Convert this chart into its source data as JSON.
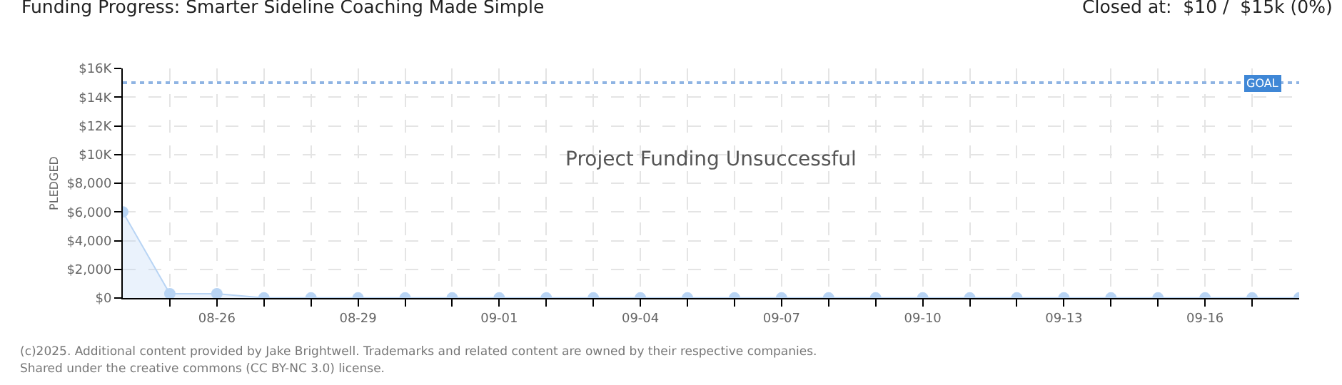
{
  "chart_data": {
    "type": "area",
    "title": "Funding Progress: Smarter Sideline Coaching Made Simple",
    "subtitle": "Closed at:  $10 /  $15k (0%)",
    "ylabel": "PLEDGED",
    "x": [
      "--08-24",
      "--08-25",
      "--08-26",
      "--08-27",
      "--08-28",
      "--08-29",
      "--08-30",
      "--08-31",
      "--09-01",
      "--09-02",
      "--09-03",
      "--09-04",
      "--09-05",
      "--09-06",
      "--09-07",
      "--09-08",
      "--09-09",
      "--09-10",
      "--09-11",
      "--09-12",
      "--09-13",
      "--09-14",
      "--09-15",
      "--09-16",
      "--09-17",
      "--09-18"
    ],
    "series": [
      {
        "color": "#b8d4f4",
        "values": [
          6000,
          300,
          300,
          10,
          10,
          10,
          10,
          10,
          10,
          10,
          10,
          10,
          10,
          10,
          10,
          10,
          10,
          10,
          10,
          10,
          10,
          10,
          10,
          10,
          10,
          10
        ]
      }
    ],
    "xlim": [
      "--08-24",
      "--09-18"
    ],
    "xticks": [
      {
        "value": "--08-25",
        "label": null
      },
      {
        "value": "--08-26",
        "label": "08-26"
      },
      {
        "value": "--08-27",
        "label": null
      },
      {
        "value": "--08-28",
        "label": null
      },
      {
        "value": "--08-29",
        "label": "08-29"
      },
      {
        "value": "--08-30",
        "label": null
      },
      {
        "value": "--08-31",
        "label": null
      },
      {
        "value": "--09-01",
        "label": "09-01"
      },
      {
        "value": "--09-02",
        "label": null
      },
      {
        "value": "--09-03",
        "label": null
      },
      {
        "value": "--09-04",
        "label": "09-04"
      },
      {
        "value": "--09-05",
        "label": null
      },
      {
        "value": "--09-06",
        "label": null
      },
      {
        "value": "--09-07",
        "label": "09-07"
      },
      {
        "value": "--09-08",
        "label": null
      },
      {
        "value": "--09-09",
        "label": null
      },
      {
        "value": "--09-10",
        "label": "09-10"
      },
      {
        "value": "--09-11",
        "label": null
      },
      {
        "value": "--09-12",
        "label": null
      },
      {
        "value": "--09-13",
        "label": "09-13"
      },
      {
        "value": "--09-14",
        "label": null
      },
      {
        "value": "--09-15",
        "label": null
      },
      {
        "value": "--09-16",
        "label": "09-16"
      },
      {
        "value": "--09-17",
        "label": null
      }
    ],
    "ylim": [
      0,
      16000
    ],
    "yticks": [
      {
        "value": 0,
        "label": "$0"
      },
      {
        "value": 2000,
        "label": "$2,000"
      },
      {
        "value": 4000,
        "label": "$4,000"
      },
      {
        "value": 6000,
        "label": "$6,000"
      },
      {
        "value": 8000,
        "label": "$8,000"
      },
      {
        "value": 10000,
        "label": "$10K"
      },
      {
        "value": 12000,
        "label": "$12K"
      },
      {
        "value": 14000,
        "label": "$14K"
      },
      {
        "value": 16000,
        "label": "$16K"
      }
    ],
    "ref_lines": [
      {
        "axis": "y",
        "value": 15000,
        "label": "GOAL",
        "color": "#8fb4e3",
        "line_style": "dotted"
      }
    ],
    "grid": true,
    "marker": "circle",
    "annotations": [
      "Project Funding Unsuccessful",
      "(c)2025. Additional content provided by Jake Brightwell. Trademarks and related content are owned by their respective companies.",
      "Shared under the creative commons (CC BY-NC 3.0) license."
    ]
  }
}
